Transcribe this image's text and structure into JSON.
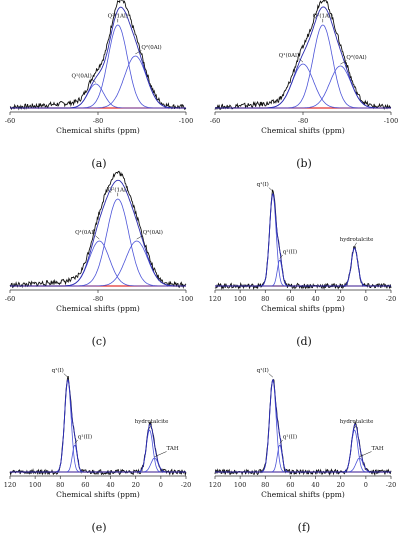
{
  "chart_data": [
    {
      "type": "line",
      "panel_label": "(a)",
      "xlabel": "Chemical shifts (ppm)",
      "xlim": [
        -60,
        -100
      ],
      "x_reversed": true,
      "x_ticks": [
        "-60",
        "-80",
        "-100"
      ],
      "tick_values": [
        -60,
        -80,
        -100
      ],
      "peaks": [
        {
          "label": "Q²(1Al)",
          "center": -84.5,
          "height": 0.83,
          "width": 2.2
        },
        {
          "label": "Q²(0Al)",
          "center": -88.5,
          "height": 0.52,
          "width": 2.5
        },
        {
          "label": "Q¹(0Al)",
          "center": -79.5,
          "height": 0.24,
          "width": 1.8
        }
      ],
      "baseline_color": "#e03030",
      "trace_color": "#111111",
      "fit_color": "#2d2db0",
      "peak_color": "#4d55d8"
    },
    {
      "type": "line",
      "panel_label": "(b)",
      "xlabel": "Chemical shifts (ppm)",
      "xlim": [
        -60,
        -100
      ],
      "x_reversed": true,
      "x_ticks": [
        "-60",
        "-80",
        "-100"
      ],
      "tick_values": [
        -60,
        -80,
        -100
      ],
      "peaks": [
        {
          "label": "Q²(1Al)",
          "center": -84.5,
          "height": 0.83,
          "width": 2.2
        },
        {
          "label": "Q²(0Al)",
          "center": -88.5,
          "height": 0.42,
          "width": 2.4
        },
        {
          "label": "Q¹(0Al)",
          "center": -80.0,
          "height": 0.44,
          "width": 2.4
        }
      ],
      "baseline_color": "#e03030",
      "trace_color": "#111111",
      "fit_color": "#2d2db0",
      "peak_color": "#4d55d8"
    },
    {
      "type": "line",
      "panel_label": "(c)",
      "xlabel": "Chemical shifts (ppm)",
      "xlim": [
        -60,
        -100
      ],
      "x_reversed": true,
      "x_ticks": [
        "-60",
        "-80",
        "-100"
      ],
      "tick_values": [
        -60,
        -80,
        -100
      ],
      "peaks": [
        {
          "label": "Q²(1Al)",
          "center": -84.5,
          "height": 0.87,
          "width": 2.5
        },
        {
          "label": "Q²(0Al)",
          "center": -88.8,
          "height": 0.45,
          "width": 2.5
        },
        {
          "label": "Q¹(0Al)",
          "center": -80.3,
          "height": 0.45,
          "width": 2.3
        }
      ],
      "baseline_color": "#e03030",
      "trace_color": "#111111",
      "fit_color": "#2d2db0",
      "peak_color": "#4d55d8"
    },
    {
      "type": "line",
      "panel_label": "(d)",
      "xlabel": "Chemical shifts (ppm)",
      "xlim": [
        120,
        -20
      ],
      "x_reversed": true,
      "x_ticks": [
        "120",
        "100",
        "80",
        "60",
        "40",
        "20",
        "0",
        "-20"
      ],
      "tick_values": [
        120,
        100,
        80,
        60,
        40,
        20,
        0,
        -20
      ],
      "peaks": [
        {
          "label": "q¹(I)",
          "center": 74.0,
          "height": 0.92,
          "width": 2.0
        },
        {
          "label": "q¹(II)",
          "center": 68.5,
          "height": 0.26,
          "width": 1.5
        },
        {
          "label": "hydrotalcite",
          "center": 9.0,
          "height": 0.38,
          "width": 2.0
        }
      ],
      "baseline_color": "#8a1010",
      "trace_color": "#111111",
      "fit_color": "#2d2db0",
      "peak_color": "#4d55d8"
    },
    {
      "type": "line",
      "panel_label": "(e)",
      "xlabel": "Chemical shifts (ppm)",
      "xlim": [
        120,
        -20
      ],
      "x_reversed": true,
      "x_ticks": [
        "120",
        "100",
        "80",
        "60",
        "40",
        "20",
        "0",
        "-20"
      ],
      "tick_values": [
        120,
        100,
        80,
        60,
        40,
        20,
        0,
        -20
      ],
      "peaks": [
        {
          "label": "q¹(I)",
          "center": 74.0,
          "height": 0.92,
          "width": 2.0
        },
        {
          "label": "q¹(II)",
          "center": 68.5,
          "height": 0.27,
          "width": 1.5
        },
        {
          "label": "hydrotalcite",
          "center": 9.0,
          "height": 0.42,
          "width": 2.0
        },
        {
          "label": "TAH",
          "center": 5.0,
          "height": 0.14,
          "width": 2.2
        }
      ],
      "baseline_color": "#8a1010",
      "trace_color": "#111111",
      "fit_color": "#2d2db0",
      "peak_color": "#4d55d8"
    },
    {
      "type": "line",
      "panel_label": "(f)",
      "xlabel": "Chemical shifts (ppm)",
      "xlim": [
        120,
        -20
      ],
      "x_reversed": true,
      "x_ticks": [
        "120",
        "100",
        "80",
        "60",
        "40",
        "20",
        "0",
        "-20"
      ],
      "tick_values": [
        120,
        100,
        80,
        60,
        40,
        20,
        0,
        -20
      ],
      "peaks": [
        {
          "label": "q¹(I)",
          "center": 74.0,
          "height": 0.92,
          "width": 2.0
        },
        {
          "label": "q¹(II)",
          "center": 68.5,
          "height": 0.27,
          "width": 1.5
        },
        {
          "label": "hydrotalcite",
          "center": 9.0,
          "height": 0.42,
          "width": 2.0
        },
        {
          "label": "TAH",
          "center": 5.0,
          "height": 0.14,
          "width": 2.2
        }
      ],
      "baseline_color": "#8a1010",
      "trace_color": "#111111",
      "fit_color": "#2d2db0",
      "peak_color": "#4d55d8"
    }
  ]
}
